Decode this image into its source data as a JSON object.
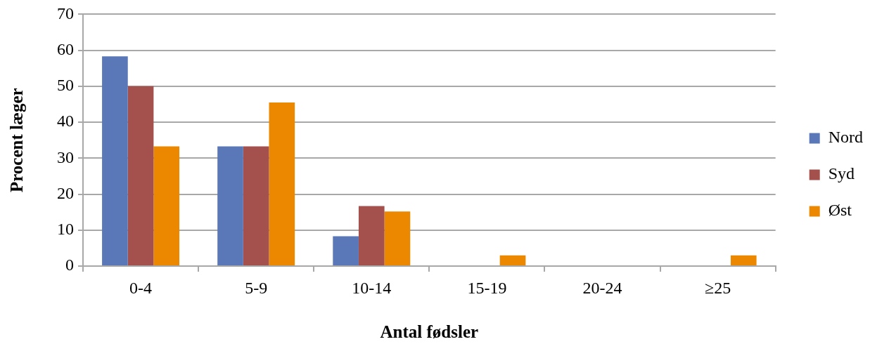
{
  "chart_data": {
    "type": "bar",
    "xlabel": "Antal fødsler",
    "ylabel": "Procent læger",
    "categories": [
      "0-4",
      "5-9",
      "10-14",
      "15-19",
      "20-24",
      "≥25"
    ],
    "series": [
      {
        "name": "Nord",
        "color": "#5a77b7",
        "values": [
          58.3,
          33.3,
          8.3,
          0,
          0,
          0
        ]
      },
      {
        "name": "Syd",
        "color": "#a4504c",
        "values": [
          50,
          33.3,
          16.7,
          0,
          0,
          0
        ]
      },
      {
        "name": "Øst",
        "color": "#ec8800",
        "values": [
          33.3,
          45.5,
          15.2,
          3,
          0,
          3
        ]
      }
    ],
    "ylim": [
      0,
      70
    ],
    "yticks": [
      0,
      10,
      20,
      30,
      40,
      50,
      60,
      70
    ],
    "grid": "y",
    "legend": "right"
  }
}
